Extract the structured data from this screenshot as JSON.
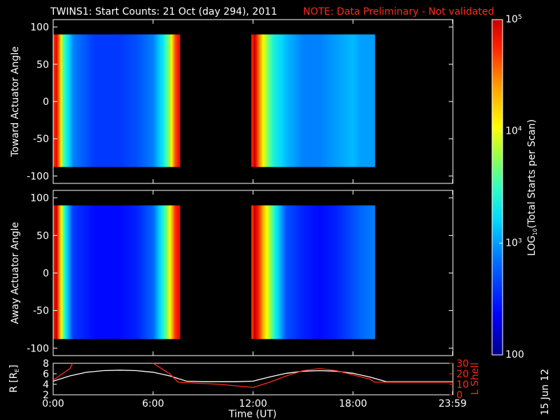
{
  "title": {
    "main": "TWINS1: Start Counts: 21 Oct (day 294), 2011",
    "note": "NOTE: Data Preliminary - Not validated"
  },
  "colors": {
    "background": "#000000",
    "text": "#ffffff",
    "note": "#ff2a1a",
    "r_line": "#ffffff",
    "lshell_line": "#ff2a1a"
  },
  "colorbar": {
    "label_prefix": "LOG",
    "label_sub": "10",
    "label_suffix": "(Total Starts per Scan)",
    "ticks": [
      {
        "base": "10",
        "exp": "5",
        "value": 100000
      },
      {
        "base": "10",
        "exp": "4",
        "value": 10000
      },
      {
        "base": "10",
        "exp": "3",
        "value": 1000
      },
      {
        "base": "100",
        "exp": "",
        "value": 100
      }
    ],
    "scale": "log",
    "range": [
      100,
      100000
    ],
    "colormap": "rainbow"
  },
  "date_stamp": "15 Jun 12",
  "chart_data": [
    {
      "type": "heatmap",
      "ylabel": "Toward Actuator Angle",
      "xlim": [
        0,
        24
      ],
      "ylim": [
        -110,
        110
      ],
      "yticks": [
        "100",
        "50",
        "0",
        "-50",
        "-100"
      ],
      "ytick_values": [
        100,
        50,
        0,
        -50,
        -100
      ],
      "data_y_range": [
        -88,
        90
      ],
      "data_gaps_hours": [
        [
          7.6,
          11.9
        ],
        [
          19.3,
          24
        ]
      ],
      "segments": [
        {
          "t_start": 0.0,
          "t_end": 7.6,
          "time_profile_log": [
            [
              0.0,
              4.7
            ],
            [
              0.2,
              4.9
            ],
            [
              0.35,
              4.5
            ],
            [
              0.6,
              3.6
            ],
            [
              1.2,
              2.9
            ],
            [
              2.5,
              2.6
            ],
            [
              4.0,
              2.6
            ],
            [
              5.0,
              2.7
            ],
            [
              6.0,
              2.9
            ],
            [
              6.6,
              3.3
            ],
            [
              7.0,
              3.8
            ],
            [
              7.3,
              4.6
            ],
            [
              7.6,
              4.9
            ]
          ]
        },
        {
          "t_start": 11.9,
          "t_end": 19.3,
          "time_profile_log": [
            [
              11.9,
              4.7
            ],
            [
              12.1,
              5.0
            ],
            [
              12.3,
              4.6
            ],
            [
              12.7,
              3.9
            ],
            [
              13.2,
              3.4
            ],
            [
              14.0,
              3.1
            ],
            [
              15.0,
              2.9
            ],
            [
              16.0,
              2.9
            ],
            [
              17.0,
              3.0
            ],
            [
              18.0,
              3.1
            ],
            [
              18.5,
              3.0
            ],
            [
              19.3,
              3.0
            ]
          ]
        }
      ]
    },
    {
      "type": "heatmap",
      "ylabel": "Away Actuator Angle",
      "xlim": [
        0,
        24
      ],
      "ylim": [
        -110,
        110
      ],
      "yticks": [
        "100",
        "50",
        "0",
        "-50",
        "-100"
      ],
      "ytick_values": [
        100,
        50,
        0,
        -50,
        -100
      ],
      "data_y_range": [
        -88,
        90
      ],
      "data_gaps_hours": [
        [
          7.6,
          11.9
        ],
        [
          19.3,
          24
        ]
      ],
      "segments": [
        {
          "t_start": 0.0,
          "t_end": 7.6,
          "time_profile_log": [
            [
              0.0,
              4.8
            ],
            [
              0.2,
              5.0
            ],
            [
              0.4,
              4.3
            ],
            [
              0.7,
              3.4
            ],
            [
              1.2,
              2.6
            ],
            [
              2.5,
              2.4
            ],
            [
              4.0,
              2.4
            ],
            [
              5.0,
              2.5
            ],
            [
              6.0,
              2.8
            ],
            [
              6.6,
              3.4
            ],
            [
              7.0,
              4.0
            ],
            [
              7.3,
              4.7
            ],
            [
              7.6,
              4.9
            ]
          ]
        },
        {
          "t_start": 11.9,
          "t_end": 19.3,
          "time_profile_log": [
            [
              11.9,
              4.6
            ],
            [
              12.1,
              5.0
            ],
            [
              12.3,
              4.8
            ],
            [
              12.7,
              4.2
            ],
            [
              13.3,
              3.4
            ],
            [
              14.0,
              2.7
            ],
            [
              15.0,
              2.5
            ],
            [
              16.0,
              2.4
            ],
            [
              17.0,
              2.5
            ],
            [
              18.0,
              2.7
            ],
            [
              18.5,
              2.8
            ],
            [
              19.3,
              2.9
            ]
          ]
        }
      ]
    },
    {
      "type": "line",
      "ylabel_left": "R [R",
      "ylabel_left_sub": "E",
      "ylabel_left_end": "]",
      "ylabel_right": "L Shell",
      "xlabel": "Time (UT)",
      "xlim": [
        0,
        24
      ],
      "xticks": [
        "0:00",
        "6:00",
        "12:00",
        "18:00",
        "23:59"
      ],
      "xtick_values": [
        0,
        6,
        12,
        18,
        23.98
      ],
      "ylim_left": [
        2,
        8
      ],
      "yticks_left": [
        "8",
        "6",
        "4",
        "2"
      ],
      "ytick_left_values": [
        8,
        6,
        4,
        2
      ],
      "ylim_right": [
        0,
        30
      ],
      "yticks_right": [
        "30",
        "20",
        "10",
        "0"
      ],
      "ytick_right_values": [
        30,
        20,
        10,
        0
      ],
      "series": [
        {
          "axis": "left",
          "x": [
            0,
            1,
            2,
            3,
            4,
            5,
            6,
            7,
            8,
            9,
            10,
            11,
            12,
            13,
            14,
            15,
            16,
            17,
            18,
            19,
            20,
            21,
            22,
            23,
            24
          ],
          "y": [
            4.6,
            5.6,
            6.3,
            6.6,
            6.7,
            6.6,
            6.3,
            5.6,
            4.6,
            4.5,
            4.5,
            4.5,
            4.6,
            5.4,
            6.1,
            6.5,
            6.6,
            6.5,
            6.1,
            5.4,
            4.5,
            4.5,
            4.5,
            4.5,
            4.5
          ]
        },
        {
          "axis": "right",
          "x": [
            0,
            1,
            1.5,
            5.4,
            6,
            7,
            7.5,
            10,
            12,
            13,
            14,
            15,
            16,
            17,
            18,
            19,
            19.3,
            24
          ],
          "y": [
            14,
            25,
            40,
            40,
            30,
            20,
            12,
            10,
            7,
            12,
            18,
            23,
            25,
            23,
            19,
            15,
            12,
            12
          ]
        }
      ]
    }
  ]
}
